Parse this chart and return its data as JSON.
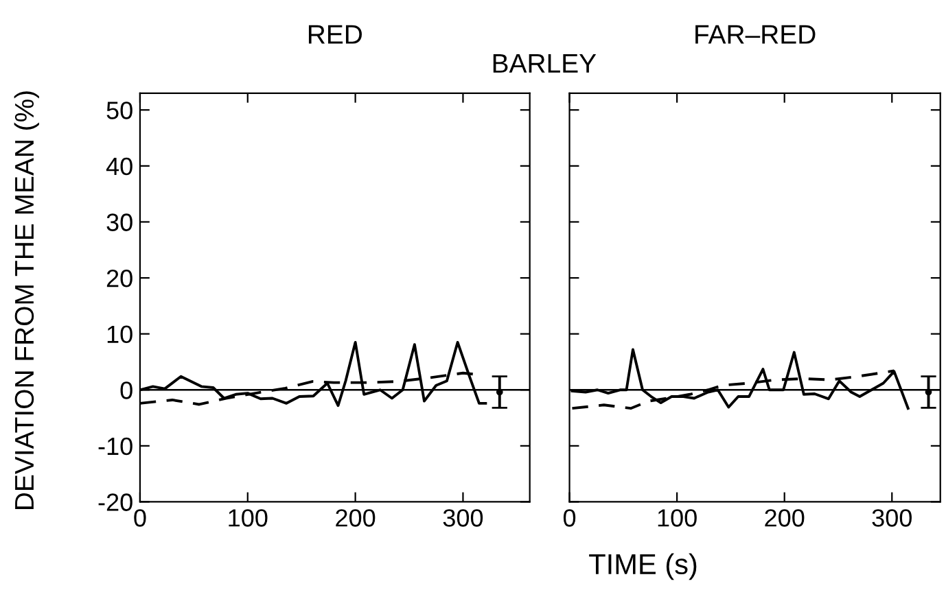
{
  "chart_data": [
    {
      "type": "line",
      "title": "RED",
      "annotations": [
        "BARLEY"
      ],
      "xlabel": "TIME (s)",
      "ylabel": "DEVIATION FROM THE MEAN (%)",
      "xlim": [
        0,
        362
      ],
      "ylim": [
        -20,
        53
      ],
      "xticks": [
        0,
        100,
        200,
        300
      ],
      "yticks": [
        -20,
        -10,
        0,
        10,
        20,
        30,
        40,
        50
      ],
      "grid": false,
      "legend": false,
      "marker": "none",
      "ref_lines": [
        {
          "axis": "y",
          "value": 0,
          "color": "#000000",
          "line_style": "solid"
        }
      ],
      "series": [
        {
          "color": "#000000",
          "line_style": "solid",
          "x": [
            0,
            12,
            23,
            38,
            57,
            68,
            78,
            89,
            100,
            112,
            123,
            136,
            148,
            161,
            174,
            184,
            191,
            200,
            208,
            223,
            234,
            244,
            255,
            264,
            275,
            285,
            295,
            306,
            315,
            321
          ],
          "values": [
            0,
            0.6,
            0.2,
            2.4,
            0.6,
            0.4,
            -1.5,
            -0.8,
            -0.6,
            -1.6,
            -1.5,
            -2.4,
            -1.2,
            -1.1,
            1.2,
            -2.8,
            1.6,
            8.5,
            -0.8,
            0,
            -1.5,
            0,
            8.1,
            -2.0,
            0.8,
            1.6,
            8.5,
            2.4,
            -2.4,
            -2.4
          ]
        },
        {
          "color": "#000000",
          "line_style": "dashed",
          "x": [
            0,
            30,
            55,
            80,
            110,
            135,
            160,
            180,
            210,
            240,
            270,
            300,
            310
          ],
          "values": [
            -2.4,
            -1.8,
            -2.6,
            -1.5,
            -0.5,
            0.3,
            1.5,
            1.3,
            1.3,
            1.5,
            2.2,
            3.0,
            2.8
          ]
        },
        {
          "type": "scatter",
          "color": "#000000",
          "x": [
            334
          ],
          "values": [
            -0.4
          ],
          "errors": [
            2.8
          ]
        }
      ]
    },
    {
      "type": "line",
      "title": "FAR–RED",
      "xlim": [
        0,
        345
      ],
      "ylim": [
        -20,
        53
      ],
      "xticks": [
        0,
        100,
        200,
        300
      ],
      "yticks": [
        {
          "value": -20,
          "label": null
        },
        {
          "value": -10,
          "label": null
        },
        {
          "value": 0,
          "label": null
        },
        {
          "value": 10,
          "label": null
        },
        {
          "value": 20,
          "label": null
        },
        {
          "value": 30,
          "label": null
        },
        {
          "value": 40,
          "label": null
        },
        {
          "value": 50,
          "label": null
        }
      ],
      "tick_labels": "x",
      "grid": false,
      "legend": false,
      "marker": "none",
      "ref_lines": [
        {
          "axis": "y",
          "value": 0,
          "color": "#000000",
          "line_style": "solid"
        }
      ],
      "series": [
        {
          "color": "#000000",
          "line_style": "solid",
          "x": [
            2.5,
            15,
            26,
            36,
            47,
            53,
            59,
            68,
            76,
            85,
            95,
            106,
            116,
            129,
            138,
            148,
            157,
            167,
            180,
            186,
            199,
            209,
            218,
            228,
            241,
            251,
            262,
            270,
            281,
            292,
            302,
            315
          ],
          "values": [
            -0.2,
            -0.4,
            0,
            -0.6,
            0,
            0,
            7.2,
            0,
            -1.2,
            -2.3,
            -1.2,
            -1.2,
            -1.5,
            -0.4,
            0,
            -3.1,
            -1.2,
            -1.2,
            3.7,
            0,
            0,
            6.7,
            -0.8,
            -0.7,
            -1.6,
            1.6,
            -0.4,
            -1.2,
            0,
            1.2,
            3.3,
            -3.3
          ]
        },
        {
          "color": "#000000",
          "line_style": "dashed",
          "x": [
            2.5,
            32,
            57,
            74,
            91,
            112,
            129,
            142,
            167,
            192,
            218,
            243,
            268,
            302
          ],
          "values": [
            -3.3,
            -2.7,
            -3.3,
            -2.0,
            -1.5,
            -0.8,
            0,
            0.8,
            1.2,
            1.8,
            2.0,
            1.8,
            2.4,
            3.4
          ]
        },
        {
          "type": "scatter",
          "color": "#000000",
          "x": [
            334
          ],
          "values": [
            -0.4
          ],
          "errors": [
            2.8
          ]
        }
      ]
    }
  ]
}
